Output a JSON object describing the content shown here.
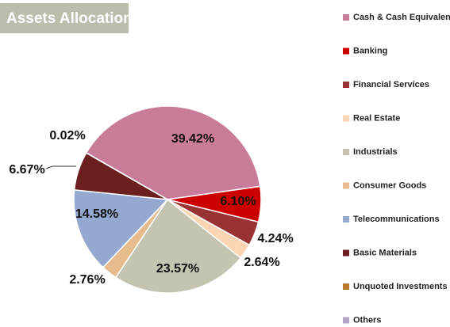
{
  "chart_data": {
    "type": "pie",
    "title": "Assets Allocation",
    "categories": [
      "Cash & Cash Equivalents",
      "Banking",
      "Financial Services",
      "Real Estate",
      "Industrials",
      "Consumer Goods",
      "Telecommunications",
      "Basic Materials",
      "Unquoted Investments",
      "Others"
    ],
    "values": [
      39.42,
      6.1,
      4.24,
      2.64,
      23.57,
      2.76,
      14.58,
      6.67,
      0.02,
      0
    ],
    "value_labels": [
      "39.42%",
      "6.10%",
      "4.24%",
      "2.64%",
      "23.57%",
      "2.76%",
      "14.58%",
      "6.67%",
      "0.02%",
      null
    ],
    "colors": [
      "#c97b9a",
      "#cc0000",
      "#993333",
      "#fcd5b5",
      "#c4c4b0",
      "#e6bc8e",
      "#95a9d0",
      "#6b1f1f",
      "#b8772a",
      "#b3a2c7"
    ],
    "legend": "right"
  }
}
